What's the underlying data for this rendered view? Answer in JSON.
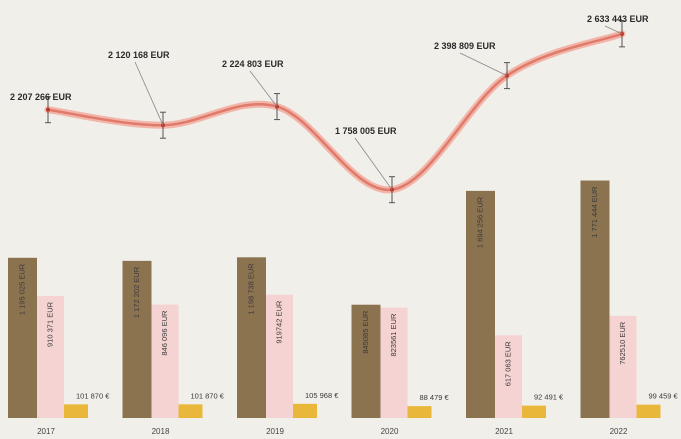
{
  "chart_data": [
    {
      "type": "line",
      "x": [
        "2017",
        "2018",
        "2019",
        "2020",
        "2021",
        "2022"
      ],
      "series": [
        {
          "values": [
            2207266,
            2120168,
            2224803,
            1758005,
            2398809,
            2633443
          ]
        }
      ],
      "data_labels": [
        "2 207 266 EUR",
        "2 120 168 EUR",
        "2 224 803 EUR",
        "1 758 005 EUR",
        "2 398 809 EUR",
        "2 633 443 EUR"
      ],
      "ylim": [
        1700000,
        2700000
      ],
      "error_bars": true,
      "line_color": "#e07a6a"
    },
    {
      "type": "bar",
      "categories": [
        "2017",
        "2018",
        "2019",
        "2020",
        "2021",
        "2022"
      ],
      "series": [
        {
          "values": [
            1195025,
            1172202,
            1198738,
            845085,
            1694256,
            1771444
          ],
          "labels": [
            "1 195 025 EUR",
            "1 172 202 EUR",
            "1 198 738 EUR",
            "845085 EUR",
            "1 694 256 EUR",
            "1 771 444 EUR"
          ],
          "color": "#8c7350"
        },
        {
          "values": [
            910371,
            846096,
            919742,
            823561,
            617063,
            762510
          ],
          "labels": [
            "910 371 EUR",
            "846 096 EUR",
            "919742 EUR",
            "823561 EUR",
            "617 063 EUR",
            "762510 EUR"
          ],
          "color": "#f6d3d3"
        },
        {
          "values": [
            101870,
            101870,
            105968,
            88479,
            92491,
            99459
          ],
          "labels": [
            "101 870 €",
            "101 870 €",
            "105 968 €",
            "88 479 €",
            "92 491 €",
            "99 459 €"
          ],
          "color": "#e9b83a"
        }
      ],
      "ylim": [
        0,
        1850000
      ],
      "grid": false,
      "legend": false
    }
  ]
}
